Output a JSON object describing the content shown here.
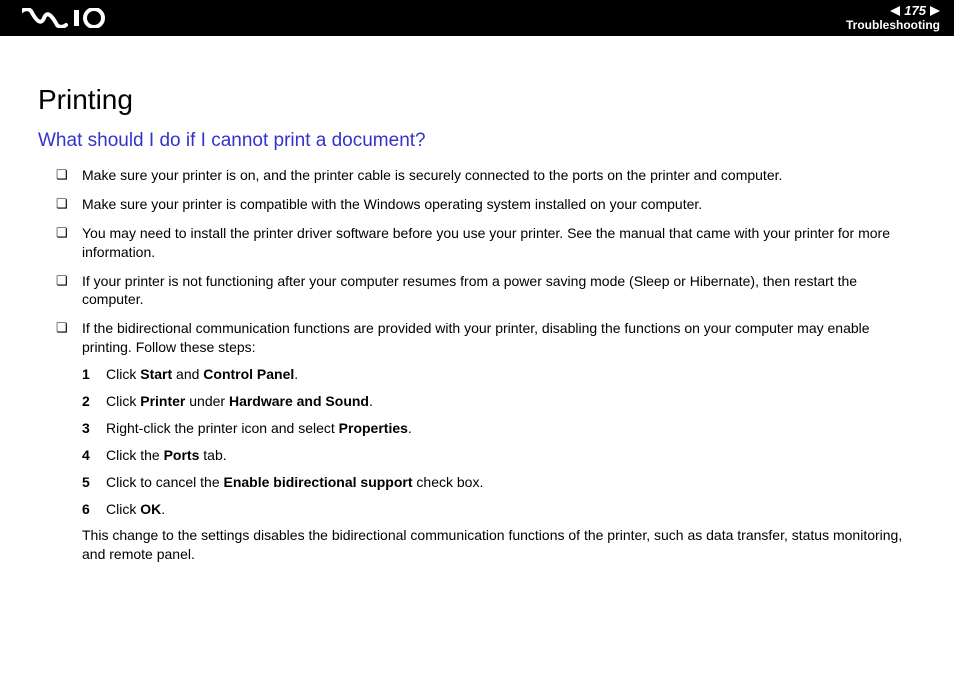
{
  "header": {
    "page_number": "175",
    "section": "Troubleshooting"
  },
  "colors": {
    "header_bg": "#000000",
    "header_text": "#ffffff",
    "body_bg": "#ffffff",
    "title_color": "#000000",
    "subtitle_color": "#3333cc",
    "body_text": "#000000"
  },
  "typography": {
    "title_fontsize": 28,
    "subtitle_fontsize": 19,
    "body_fontsize": 14,
    "font_family": "Arial"
  },
  "content": {
    "title": "Printing",
    "subtitle": "What should I do if I cannot print a document?",
    "bullets": [
      {
        "text": "Make sure your printer is on, and the printer cable is securely connected to the ports on the printer and computer."
      },
      {
        "text": "Make sure your printer is compatible with the Windows operating system installed on your computer."
      },
      {
        "text": "You may need to install the printer driver software before you use your printer. See the manual that came with your printer for more information."
      },
      {
        "text": "If your printer is not functioning after your computer resumes from a power saving mode (Sleep or Hibernate), then restart the computer."
      },
      {
        "text": "If the bidirectional communication functions are provided with your printer, disabling the functions on your computer may enable printing. Follow these steps:"
      }
    ],
    "steps": [
      {
        "n": "1",
        "parts": [
          "Click ",
          "Start",
          " and ",
          "Control Panel",
          "."
        ]
      },
      {
        "n": "2",
        "parts": [
          "Click ",
          "Printer",
          " under ",
          "Hardware and Sound",
          "."
        ]
      },
      {
        "n": "3",
        "parts": [
          "Right-click the printer icon and select ",
          "Properties",
          "."
        ]
      },
      {
        "n": "4",
        "parts": [
          "Click the ",
          "Ports",
          " tab."
        ]
      },
      {
        "n": "5",
        "parts": [
          "Click to cancel the ",
          "Enable bidirectional support",
          " check box."
        ]
      },
      {
        "n": "6",
        "parts": [
          "Click ",
          "OK",
          "."
        ]
      }
    ],
    "trail": "This change to the settings disables the bidirectional communication functions of the printer, such as data transfer, status monitoring, and remote panel."
  }
}
